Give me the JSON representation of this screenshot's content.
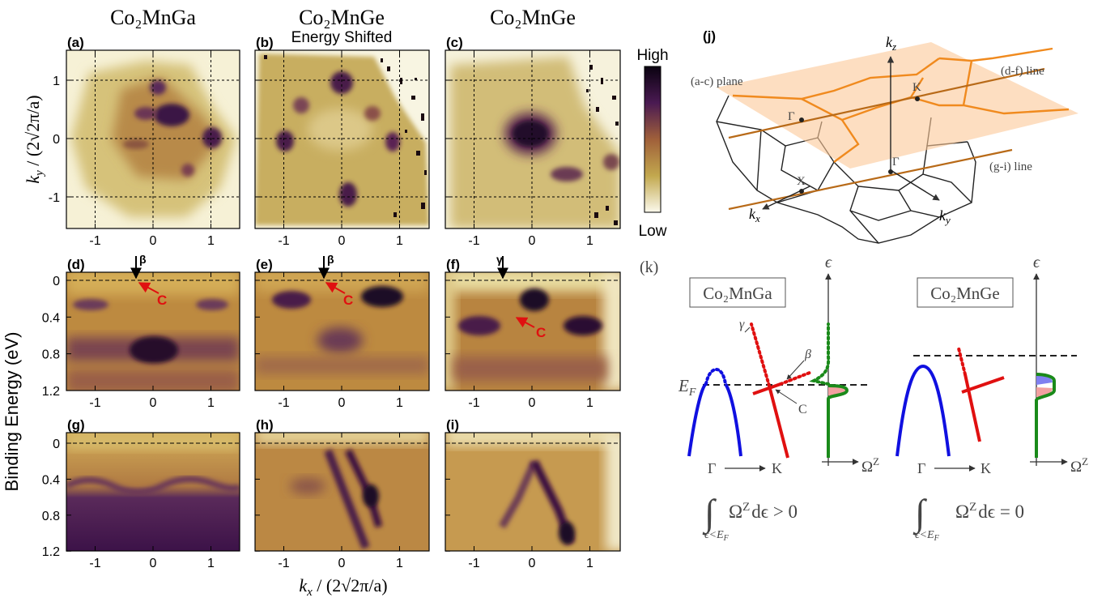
{
  "figure": {
    "columns": [
      {
        "title": "Co₂MnGa"
      },
      {
        "title": "Co₂MnGe",
        "subtitle": "Energy Shifted"
      },
      {
        "title": "Co₂MnGe"
      }
    ],
    "panel_labels": [
      "(a)",
      "(b)",
      "(c)",
      "(d)",
      "(e)",
      "(f)",
      "(g)",
      "(h)",
      "(i)",
      "(j)",
      "(k)"
    ],
    "kx_ticks": [
      -1,
      0,
      1
    ],
    "ky_ticks": [
      1,
      0,
      -1
    ],
    "energy_ticks": [
      0,
      0.4,
      0.8,
      1.2
    ],
    "ky_label": {
      "symbol": "k",
      "sub": "y",
      "rest": " / (2√2π/a)"
    },
    "kx_label": {
      "symbol": "k",
      "sub": "x",
      "rest": " / (2√2π/a)"
    },
    "energy_label": "Binding Energy (eV)",
    "colorbar": {
      "high": "High",
      "low": "Low"
    },
    "arpes_annotations": [
      {
        "arrow": "β",
        "point": "C"
      },
      {
        "arrow": "β",
        "point": "C"
      },
      {
        "arrow": "γ",
        "point": "C"
      }
    ],
    "bz_diagram": {
      "plane": "(a-c) plane",
      "line_df": "(d-f) line",
      "line_gi": "(g-i) line",
      "kz": {
        "symbol": "k",
        "sub": "z"
      },
      "kx": {
        "symbol": "k",
        "sub": "x"
      },
      "ky": {
        "symbol": "k",
        "sub": "y"
      },
      "k_point": "K",
      "gamma_top": "Γ",
      "gamma_mid": "Γ",
      "x_point": "X"
    },
    "berry_diagram": {
      "left": {
        "material": "Co₂MnGa",
        "epsilon": "ϵ",
        "ef": {
          "symbol": "E",
          "sub": "F"
        },
        "gamma_band": "γ",
        "beta_band": "β",
        "c_point": "C",
        "from_point": "Γ",
        "to_point": "K",
        "omega": {
          "symbol": "Ω",
          "sup": "Z"
        },
        "integral": {
          "sign": "∫",
          "body": "Ω",
          "sup": "Z",
          "tail": "dϵ > 0",
          "lower": "ϵ<E",
          "lower_sub": "F"
        }
      },
      "right": {
        "material": "Co₂MnGe",
        "epsilon": "ϵ",
        "from_point": "Γ",
        "to_point": "K",
        "omega": {
          "symbol": "Ω",
          "sup": "Z"
        },
        "integral": {
          "sign": "∫",
          "body": "Ω",
          "sup": "Z",
          "tail": "dϵ = 0",
          "lower": "ϵ<E",
          "lower_sub": "F"
        }
      }
    }
  }
}
